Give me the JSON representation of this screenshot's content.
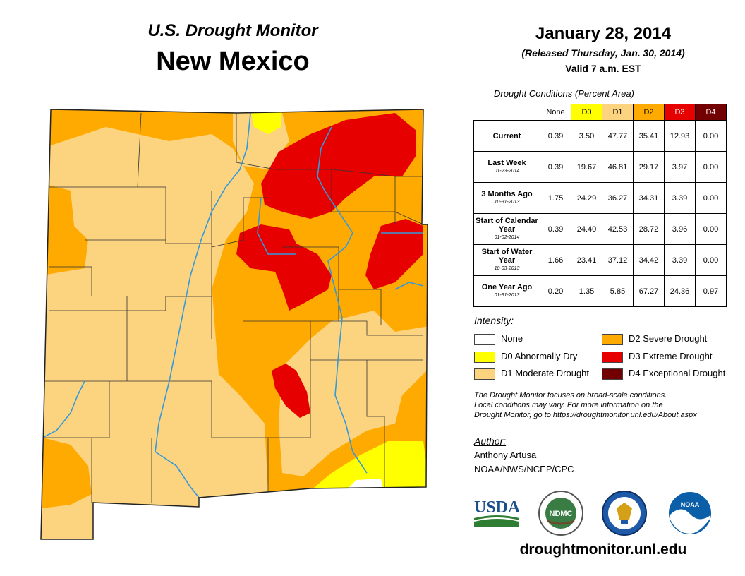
{
  "header": {
    "subtitle": "U.S. Drought Monitor",
    "state": "New Mexico",
    "date": "January 28, 2014",
    "released": "(Released Thursday, Jan. 30, 2014)",
    "valid": "Valid 7 a.m. EST"
  },
  "table": {
    "caption": "Drought Conditions (Percent Area)",
    "columns": [
      "None",
      "D0",
      "D1",
      "D2",
      "D3",
      "D4"
    ],
    "column_colors": [
      "#ffffff",
      "#ffff00",
      "#fcd37f",
      "#ffaa00",
      "#e60000",
      "#730000"
    ],
    "rows": [
      {
        "label": "Current",
        "date": "",
        "values": [
          "0.39",
          "3.50",
          "47.77",
          "35.41",
          "12.93",
          "0.00"
        ]
      },
      {
        "label": "Last Week",
        "date": "01-23-2014",
        "values": [
          "0.39",
          "19.67",
          "46.81",
          "29.17",
          "3.97",
          "0.00"
        ]
      },
      {
        "label": "3 Months Ago",
        "date": "10-31-2013",
        "values": [
          "1.75",
          "24.29",
          "36.27",
          "34.31",
          "3.39",
          "0.00"
        ]
      },
      {
        "label": "Start of Calendar Year",
        "date": "01-02-2014",
        "values": [
          "0.39",
          "24.40",
          "42.53",
          "28.72",
          "3.96",
          "0.00"
        ]
      },
      {
        "label": "Start of Water Year",
        "date": "10-03-2013",
        "values": [
          "1.66",
          "23.41",
          "37.12",
          "34.42",
          "3.39",
          "0.00"
        ]
      },
      {
        "label": "One Year Ago",
        "date": "01-31-2013",
        "values": [
          "0.20",
          "1.35",
          "5.85",
          "67.27",
          "24.36",
          "0.97"
        ]
      }
    ]
  },
  "legend": {
    "title": "Intensity:",
    "items": [
      {
        "label": "None",
        "color": "#ffffff"
      },
      {
        "label": "D0 Abnormally Dry",
        "color": "#ffff00"
      },
      {
        "label": "D1 Moderate Drought",
        "color": "#fcd37f"
      },
      {
        "label": "D2 Severe Drought",
        "color": "#ffaa00"
      },
      {
        "label": "D3 Extreme Drought",
        "color": "#e60000"
      },
      {
        "label": "D4 Exceptional Drought",
        "color": "#730000"
      }
    ]
  },
  "note": {
    "line1": "The Drought Monitor focuses on broad-scale conditions.",
    "line2": "Local conditions may vary. For more information on the",
    "line3": "Drought Monitor, go to https://droughtmonitor.unl.edu/About.aspx"
  },
  "author": {
    "heading": "Author:",
    "name": "Anthony Artusa",
    "org": "NOAA/NWS/NCEP/CPC"
  },
  "logos": {
    "usda": "USDA",
    "ndmc": "NDMC",
    "noaa": "NOAA"
  },
  "footer": {
    "url": "droughtmonitor.unl.edu"
  },
  "colors": {
    "river": "#3399dd",
    "county_line": "#333333"
  }
}
